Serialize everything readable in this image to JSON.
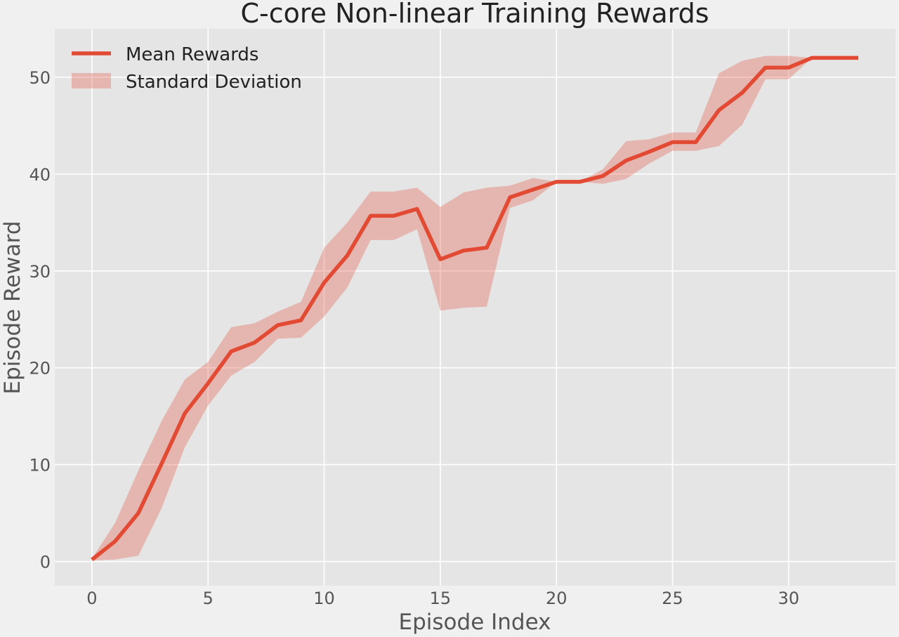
{
  "chart_data": {
    "type": "line",
    "title": "C-core Non-linear Training Rewards",
    "xlabel": "Episode Index",
    "ylabel": "Episode Reward",
    "xlim": [
      -1.6,
      34.6
    ],
    "ylim": [
      -2.5,
      55
    ],
    "xticks": [
      0,
      5,
      10,
      15,
      20,
      25,
      30
    ],
    "yticks": [
      0,
      10,
      20,
      30,
      40,
      50
    ],
    "grid": true,
    "legend_position": "top-left",
    "x": [
      0,
      1,
      2,
      3,
      4,
      5,
      6,
      7,
      8,
      9,
      10,
      11,
      12,
      13,
      14,
      15,
      16,
      17,
      18,
      19,
      20,
      21,
      22,
      23,
      24,
      25,
      26,
      27,
      28,
      29,
      30,
      31,
      32,
      33
    ],
    "series": [
      {
        "name": "Mean Rewards",
        "kind": "line",
        "color": "#e24a33",
        "values": [
          0.2,
          2.1,
          5.0,
          10.1,
          15.3,
          18.4,
          21.7,
          22.6,
          24.4,
          24.9,
          28.8,
          31.6,
          35.7,
          35.7,
          36.4,
          31.2,
          32.1,
          32.4,
          37.6,
          38.4,
          39.2,
          39.2,
          39.8,
          41.4,
          42.3,
          43.3,
          43.3,
          46.6,
          48.4,
          51.0,
          51.0,
          52.0,
          52.0,
          52.0
        ]
      },
      {
        "name": "Standard Deviation",
        "kind": "band",
        "color": "#e24a33",
        "lower": [
          0.1,
          0.2,
          0.6,
          5.5,
          11.8,
          16.1,
          19.2,
          20.6,
          23.0,
          23.1,
          25.3,
          28.3,
          33.2,
          33.2,
          34.3,
          25.9,
          26.2,
          26.3,
          36.5,
          37.3,
          39.2,
          39.2,
          39.0,
          39.5,
          41.1,
          42.4,
          42.4,
          42.9,
          45.1,
          49.8,
          49.8,
          52.0,
          52.0,
          52.0
        ],
        "upper": [
          0.3,
          4.0,
          9.4,
          14.5,
          18.8,
          20.6,
          24.2,
          24.6,
          25.8,
          26.8,
          32.4,
          35.0,
          38.2,
          38.2,
          38.6,
          36.6,
          38.1,
          38.6,
          38.8,
          39.6,
          39.2,
          39.2,
          40.5,
          43.4,
          43.6,
          44.3,
          44.3,
          50.4,
          51.7,
          52.2,
          52.2,
          52.0,
          52.0,
          52.0
        ]
      }
    ]
  }
}
